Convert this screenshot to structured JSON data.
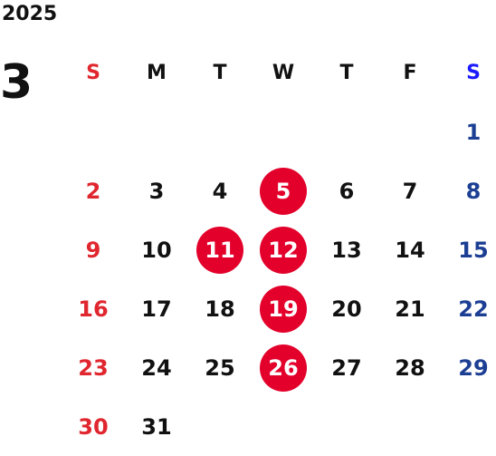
{
  "year": "2025",
  "month": "3",
  "weekdays": [
    "S",
    "M",
    "T",
    "W",
    "T",
    "F",
    "S"
  ],
  "weeks": [
    [
      "",
      "",
      "",
      "",
      "",
      "",
      "1"
    ],
    [
      "2",
      "3",
      "4",
      "5",
      "6",
      "7",
      "8"
    ],
    [
      "9",
      "10",
      "11",
      "12",
      "13",
      "14",
      "15"
    ],
    [
      "16",
      "17",
      "18",
      "19",
      "20",
      "21",
      "22"
    ],
    [
      "23",
      "24",
      "25",
      "26",
      "27",
      "28",
      "29"
    ],
    [
      "30",
      "31",
      "",
      "",
      "",
      "",
      ""
    ]
  ],
  "highlighted_days": [
    "5",
    "11",
    "12",
    "19",
    "26"
  ],
  "colors": {
    "sunday": "#e0262e",
    "saturday": "#1c3f94",
    "saturday_header": "#1a1aff",
    "highlight": "#e3002b",
    "text": "#111111"
  }
}
